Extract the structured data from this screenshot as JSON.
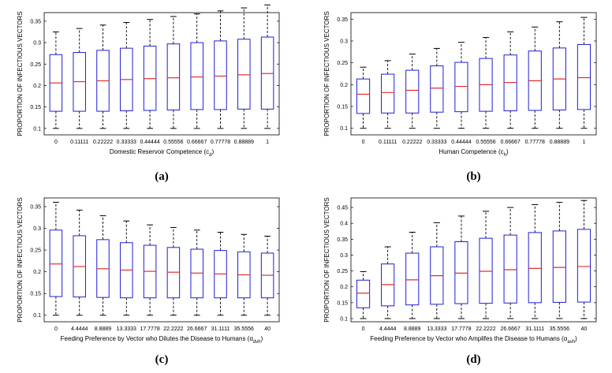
{
  "chart_data": [
    {
      "type": "box",
      "panel_label": "(a)",
      "xlabel": "Domestic Reservoir Competence (c",
      "xlabel_sub": "d",
      "xlabel_tail": ")",
      "ylabel": "PROPORTION OF INFECTIOUS VECTORS",
      "categories": [
        "0",
        "0.11111",
        "0.22222",
        "0.33333",
        "0.44444",
        "0.55556",
        "0.66667",
        "0.77778",
        "0.88889",
        "1"
      ],
      "ylim": [
        0.085,
        0.37
      ],
      "yticks": [
        0.1,
        0.15,
        0.2,
        0.25,
        0.3,
        0.35
      ],
      "ytick_labels": [
        "0.1",
        "0.15",
        "0.2",
        "0.25",
        "0.3",
        "0.35"
      ],
      "boxes": [
        {
          "min": 0.1,
          "q1": 0.14,
          "median": 0.206,
          "q3": 0.272,
          "max": 0.325
        },
        {
          "min": 0.1,
          "q1": 0.14,
          "median": 0.209,
          "q3": 0.277,
          "max": 0.333
        },
        {
          "min": 0.1,
          "q1": 0.14,
          "median": 0.211,
          "q3": 0.282,
          "max": 0.341
        },
        {
          "min": 0.1,
          "q1": 0.141,
          "median": 0.214,
          "q3": 0.287,
          "max": 0.347
        },
        {
          "min": 0.1,
          "q1": 0.142,
          "median": 0.216,
          "q3": 0.292,
          "max": 0.354
        },
        {
          "min": 0.1,
          "q1": 0.143,
          "median": 0.218,
          "q3": 0.297,
          "max": 0.361
        },
        {
          "min": 0.1,
          "q1": 0.144,
          "median": 0.22,
          "q3": 0.3,
          "max": 0.367
        },
        {
          "min": 0.1,
          "q1": 0.144,
          "median": 0.222,
          "q3": 0.304,
          "max": 0.374
        },
        {
          "min": 0.1,
          "q1": 0.145,
          "median": 0.225,
          "q3": 0.308,
          "max": 0.381
        },
        {
          "min": 0.1,
          "q1": 0.145,
          "median": 0.228,
          "q3": 0.313,
          "max": 0.388
        }
      ]
    },
    {
      "type": "box",
      "panel_label": "(b)",
      "xlabel": "Human Competence (c",
      "xlabel_sub": "h",
      "xlabel_tail": ")",
      "ylabel": "PROPORTION OF INFECTIOUS VECTORS",
      "categories": [
        "0",
        "0.11111",
        "0.22222",
        "0.33333",
        "0.44444",
        "0.55556",
        "0.66667",
        "0.77778",
        "0.88889",
        "1"
      ],
      "ylim": [
        0.085,
        0.365
      ],
      "yticks": [
        0.1,
        0.15,
        0.2,
        0.25,
        0.3,
        0.35
      ],
      "ytick_labels": [
        "0.1",
        "0.15",
        "0.2",
        "0.25",
        "0.3",
        "0.35"
      ],
      "boxes": [
        {
          "min": 0.1,
          "q1": 0.134,
          "median": 0.178,
          "q3": 0.213,
          "max": 0.24
        },
        {
          "min": 0.1,
          "q1": 0.135,
          "median": 0.182,
          "q3": 0.224,
          "max": 0.255
        },
        {
          "min": 0.1,
          "q1": 0.135,
          "median": 0.187,
          "q3": 0.233,
          "max": 0.27
        },
        {
          "min": 0.1,
          "q1": 0.137,
          "median": 0.192,
          "q3": 0.243,
          "max": 0.283
        },
        {
          "min": 0.1,
          "q1": 0.138,
          "median": 0.196,
          "q3": 0.251,
          "max": 0.297
        },
        {
          "min": 0.1,
          "q1": 0.139,
          "median": 0.2,
          "q3": 0.26,
          "max": 0.308
        },
        {
          "min": 0.1,
          "q1": 0.14,
          "median": 0.205,
          "q3": 0.268,
          "max": 0.321
        },
        {
          "min": 0.1,
          "q1": 0.141,
          "median": 0.209,
          "q3": 0.277,
          "max": 0.332
        },
        {
          "min": 0.1,
          "q1": 0.142,
          "median": 0.213,
          "q3": 0.284,
          "max": 0.344
        },
        {
          "min": 0.1,
          "q1": 0.143,
          "median": 0.216,
          "q3": 0.292,
          "max": 0.354
        }
      ]
    },
    {
      "type": "box",
      "panel_label": "(c)",
      "xlabel": "Feeding Preference by Vector who Dilutes the Disease to Humans (α",
      "xlabel_sub": "dvh",
      "xlabel_tail": ")",
      "ylabel": "PROPORTION OF INFECTIOUS VECTORS",
      "categories": [
        "0",
        "4.4444",
        "8.8889",
        "13.3333",
        "17.7778",
        "22.2222",
        "26.6667",
        "31.1111",
        "35.5556",
        "40"
      ],
      "ylim": [
        0.085,
        0.37
      ],
      "yticks": [
        0.1,
        0.15,
        0.2,
        0.25,
        0.3,
        0.35
      ],
      "ytick_labels": [
        "0.1",
        "0.15",
        "0.2",
        "0.25",
        "0.3",
        "0.35"
      ],
      "boxes": [
        {
          "min": 0.1,
          "q1": 0.143,
          "median": 0.218,
          "q3": 0.296,
          "max": 0.36
        },
        {
          "min": 0.1,
          "q1": 0.142,
          "median": 0.212,
          "q3": 0.283,
          "max": 0.342
        },
        {
          "min": 0.1,
          "q1": 0.141,
          "median": 0.207,
          "q3": 0.274,
          "max": 0.329
        },
        {
          "min": 0.1,
          "q1": 0.14,
          "median": 0.204,
          "q3": 0.267,
          "max": 0.317
        },
        {
          "min": 0.1,
          "q1": 0.14,
          "median": 0.201,
          "q3": 0.261,
          "max": 0.308
        },
        {
          "min": 0.1,
          "q1": 0.14,
          "median": 0.199,
          "q3": 0.256,
          "max": 0.302
        },
        {
          "min": 0.1,
          "q1": 0.14,
          "median": 0.197,
          "q3": 0.252,
          "max": 0.296
        },
        {
          "min": 0.1,
          "q1": 0.14,
          "median": 0.195,
          "q3": 0.249,
          "max": 0.291
        },
        {
          "min": 0.1,
          "q1": 0.14,
          "median": 0.193,
          "q3": 0.246,
          "max": 0.286
        },
        {
          "min": 0.1,
          "q1": 0.14,
          "median": 0.192,
          "q3": 0.243,
          "max": 0.282
        }
      ]
    },
    {
      "type": "box",
      "panel_label": "(d)",
      "xlabel": "Feeding Preference by Vector who Amplifes the Disease to Humans (α",
      "xlabel_sub": "avh",
      "xlabel_tail": ")",
      "ylabel": "PROPORTION OF INFECTIOUS VECTORS",
      "categories": [
        "0",
        "4.4444",
        "8.8889",
        "13.3333",
        "17.7778",
        "22.2222",
        "26.6667",
        "31.1111",
        "35.5556",
        "40"
      ],
      "ylim": [
        0.09,
        0.48
      ],
      "yticks": [
        0.1,
        0.15,
        0.2,
        0.25,
        0.3,
        0.35,
        0.4,
        0.45
      ],
      "ytick_labels": [
        "0.1",
        "0.15",
        "0.2",
        "0.25",
        "0.3",
        "0.35",
        "0.4",
        "0.45"
      ],
      "boxes": [
        {
          "min": 0.1,
          "q1": 0.134,
          "median": 0.18,
          "q3": 0.221,
          "max": 0.248
        },
        {
          "min": 0.1,
          "q1": 0.14,
          "median": 0.207,
          "q3": 0.272,
          "max": 0.326
        },
        {
          "min": 0.1,
          "q1": 0.143,
          "median": 0.222,
          "q3": 0.306,
          "max": 0.372
        },
        {
          "min": 0.1,
          "q1": 0.145,
          "median": 0.235,
          "q3": 0.326,
          "max": 0.402
        },
        {
          "min": 0.1,
          "q1": 0.147,
          "median": 0.243,
          "q3": 0.342,
          "max": 0.423
        },
        {
          "min": 0.1,
          "q1": 0.148,
          "median": 0.249,
          "q3": 0.353,
          "max": 0.438
        },
        {
          "min": 0.1,
          "q1": 0.149,
          "median": 0.254,
          "q3": 0.363,
          "max": 0.45
        },
        {
          "min": 0.1,
          "q1": 0.15,
          "median": 0.258,
          "q3": 0.371,
          "max": 0.459
        },
        {
          "min": 0.1,
          "q1": 0.151,
          "median": 0.261,
          "q3": 0.376,
          "max": 0.466
        },
        {
          "min": 0.1,
          "q1": 0.152,
          "median": 0.264,
          "q3": 0.381,
          "max": 0.472
        }
      ]
    }
  ],
  "colors": {
    "box": "#1f1fd6",
    "median": "#e0312b",
    "whisker": "#000000",
    "axes": "#000000"
  }
}
